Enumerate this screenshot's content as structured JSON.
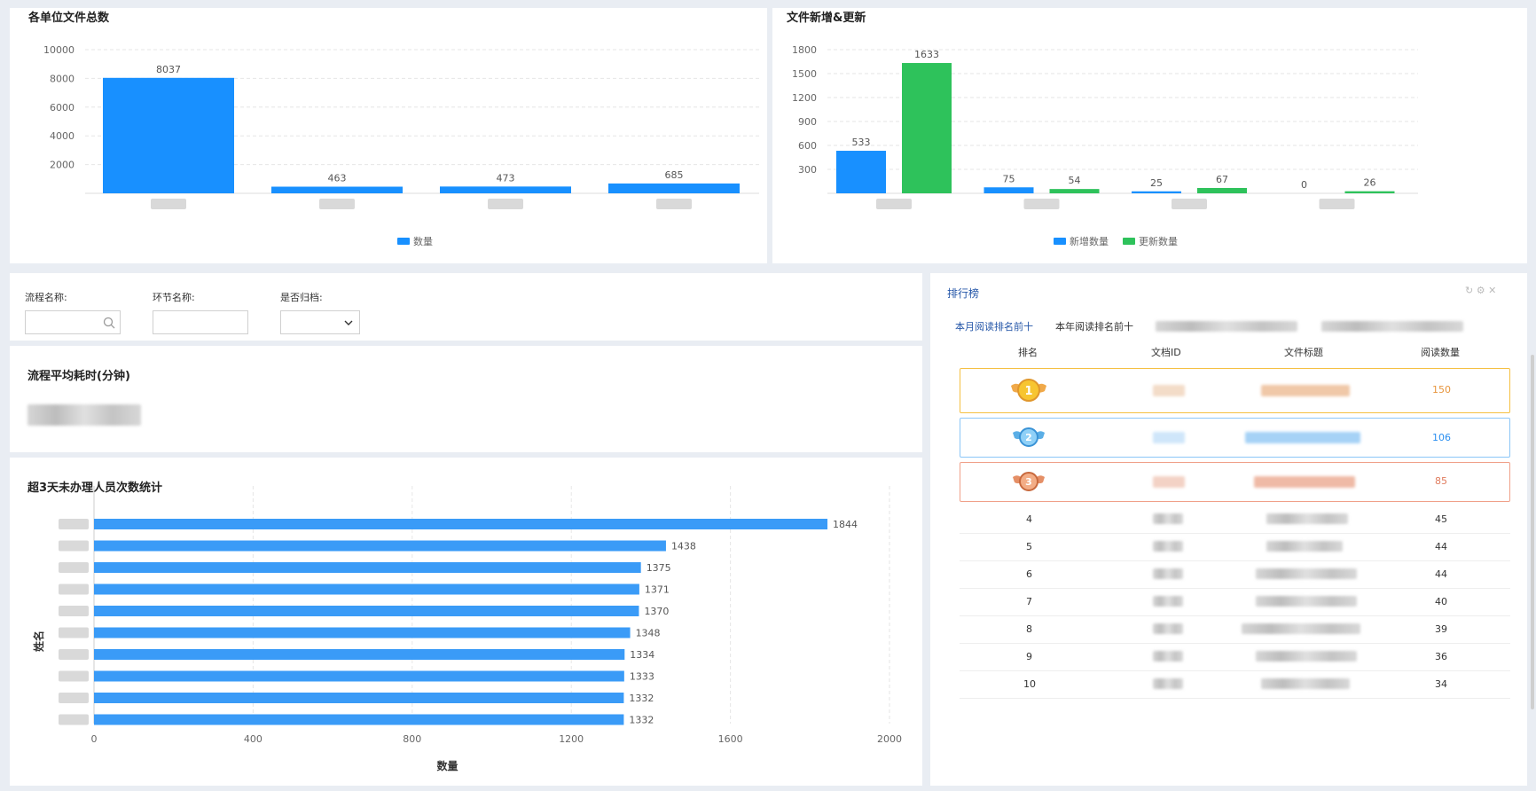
{
  "chart1": {
    "title": "各单位文件总数",
    "chart_data": {
      "type": "bar",
      "title": "各单位文件总数",
      "categories": [
        "",
        "",
        "",
        ""
      ],
      "series": [
        {
          "name": "数量",
          "values": [
            8037,
            463,
            473,
            685
          ],
          "color": "#1890ff"
        }
      ],
      "y_ticks": [
        2000,
        4000,
        6000,
        8000,
        10000
      ],
      "ylim": [
        0,
        10000
      ],
      "legend": "bottom-center"
    }
  },
  "chart2": {
    "title": "文件新增&更新",
    "chart_data": {
      "type": "bar",
      "title": "文件新增&更新",
      "categories": [
        "",
        "",
        "",
        ""
      ],
      "series": [
        {
          "name": "新增数量",
          "values": [
            533,
            75,
            25,
            0
          ],
          "color": "#1890ff"
        },
        {
          "name": "更新数量",
          "values": [
            1633,
            54,
            67,
            26
          ],
          "color": "#2ec25b"
        }
      ],
      "y_ticks": [
        300,
        600,
        900,
        1200,
        1500,
        1800
      ],
      "ylim": [
        0,
        1800
      ],
      "legend": "bottom-center"
    }
  },
  "filters": {
    "process_label": "流程名称:",
    "node_label": "环节名称:",
    "archived_label": "是否归档:"
  },
  "avg_time": {
    "title": "流程平均耗时(分钟)"
  },
  "chart3": {
    "title": "超3天未办理人员次数统计",
    "chart_data": {
      "type": "bar",
      "orientation": "horizontal",
      "title": "超3天未办理人员次数统计",
      "xlabel": "数量",
      "ylabel": "姓名",
      "categories": [
        "",
        "",
        "",
        "",
        "",
        "",
        "",
        "",
        "",
        ""
      ],
      "values": [
        1844,
        1438,
        1375,
        1371,
        1370,
        1348,
        1334,
        1333,
        1332,
        1332
      ],
      "x_ticks": [
        0,
        400,
        800,
        1200,
        1600,
        2000
      ],
      "xlim": [
        0,
        2000
      ],
      "color": "#3a9bf7"
    }
  },
  "ranking": {
    "title": "排行榜",
    "tabs": [
      "本月阅读排名前十",
      "本年阅读排名前十"
    ],
    "columns": [
      "排名",
      "文档ID",
      "文件标题",
      "阅读数量"
    ],
    "rows": [
      {
        "rank": "1",
        "reads": "150",
        "color": "#e7963e"
      },
      {
        "rank": "2",
        "reads": "106",
        "color": "#2b8ff0"
      },
      {
        "rank": "3",
        "reads": "85",
        "color": "#e07c5e"
      },
      {
        "rank": "4",
        "reads": "45",
        "color": "#333333"
      },
      {
        "rank": "5",
        "reads": "44",
        "color": "#333333"
      },
      {
        "rank": "6",
        "reads": "44",
        "color": "#333333"
      },
      {
        "rank": "7",
        "reads": "40",
        "color": "#333333"
      },
      {
        "rank": "8",
        "reads": "39",
        "color": "#333333"
      },
      {
        "rank": "9",
        "reads": "36",
        "color": "#333333"
      },
      {
        "rank": "10",
        "reads": "34",
        "color": "#333333"
      }
    ]
  }
}
